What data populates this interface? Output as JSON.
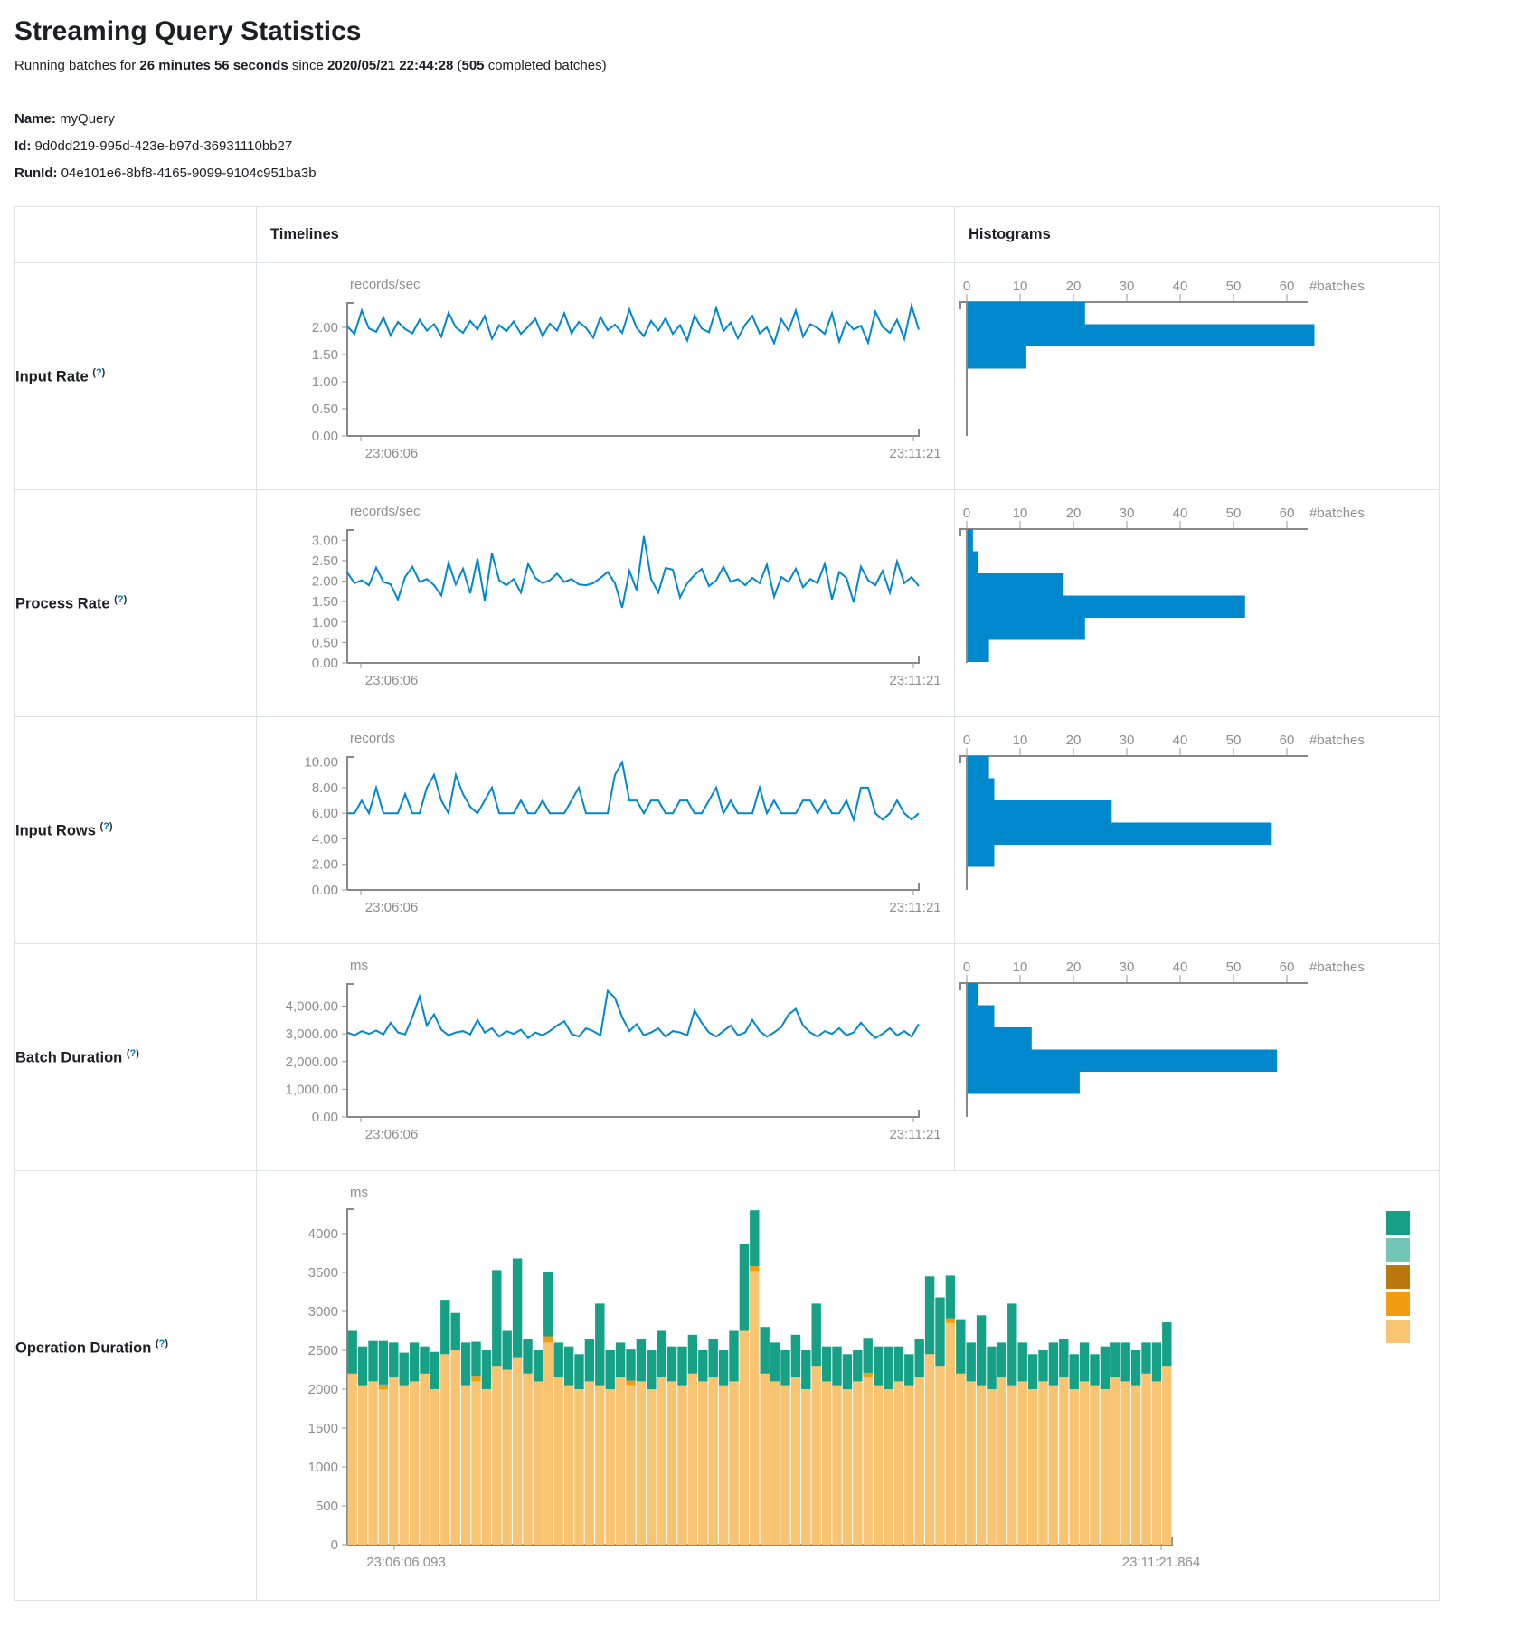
{
  "page": {
    "title": "Streaming Query Statistics",
    "summary": {
      "prefix": "Running batches for ",
      "duration": "26 minutes 56 seconds",
      "mid": " since ",
      "start_time": "2020/05/21 22:44:28",
      "open": " (",
      "batch_count": "505",
      "suffix": " completed batches)"
    },
    "name_label": "Name:",
    "name_value": "myQuery",
    "id_label": "Id:",
    "id_value": "9d0dd219-995d-423e-b97d-36931110bb27",
    "runid_label": "RunId:",
    "runid_value": "04e101e6-8bf8-4165-9099-9104c951ba3b"
  },
  "table": {
    "col_timelines": "Timelines",
    "col_histograms": "Histograms",
    "help": {
      "open": "(",
      "q": "?",
      "close": ")"
    },
    "rows": [
      {
        "label": "Input Rate"
      },
      {
        "label": "Process Rate"
      },
      {
        "label": "Input Rows"
      },
      {
        "label": "Batch Duration"
      },
      {
        "label": "Operation Duration"
      }
    ]
  },
  "colors": {
    "line_blue": "#0088CC",
    "bar_blue": "#0088CC"
  },
  "chart_data": {
    "metrics": [
      {
        "key": "input_rate",
        "type": "line",
        "title": "Input Rate",
        "unit": "records/sec",
        "x_start": "23:06:06",
        "x_end": "23:11:21",
        "y_max": 2.45,
        "y_ticks": [
          {
            "v": 0,
            "label": "0.00"
          },
          {
            "v": 0.5,
            "label": "0.50"
          },
          {
            "v": 1,
            "label": "1.00"
          },
          {
            "v": 1.5,
            "label": "1.50"
          },
          {
            "v": 2,
            "label": "2.00"
          }
        ],
        "values": [
          2.02,
          1.88,
          2.31,
          1.98,
          1.92,
          2.18,
          1.85,
          2.1,
          1.97,
          1.89,
          2.14,
          1.94,
          2.06,
          1.83,
          2.27,
          2.0,
          1.9,
          2.12,
          1.96,
          2.21,
          1.79,
          2.04,
          1.93,
          2.11,
          1.88,
          2.01,
          2.16,
          1.84,
          2.07,
          1.94,
          2.26,
          1.89,
          2.1,
          1.99,
          1.81,
          2.19,
          1.95,
          2.05,
          1.9,
          2.33,
          1.99,
          1.84,
          2.12,
          1.94,
          2.17,
          1.88,
          2.04,
          1.76,
          2.22,
          1.98,
          1.91,
          2.36,
          1.93,
          2.09,
          1.8,
          2.05,
          2.21,
          1.89,
          2.0,
          1.71,
          2.15,
          1.94,
          2.31,
          1.83,
          2.06,
          1.99,
          1.88,
          2.26,
          1.74,
          2.11,
          1.96,
          2.03,
          1.72,
          2.29,
          2.01,
          1.9,
          2.14,
          1.79,
          2.4,
          1.96
        ],
        "histogram": {
          "x_ticks": [
            0,
            10,
            20,
            30,
            40,
            50,
            60
          ],
          "unit_label": "#batches",
          "bins": [
            22,
            65,
            11
          ]
        }
      },
      {
        "key": "process_rate",
        "type": "line",
        "title": "Process Rate",
        "unit": "records/sec",
        "x_start": "23:06:06",
        "x_end": "23:11:21",
        "y_max": 3.25,
        "y_ticks": [
          {
            "v": 0,
            "label": "0.00"
          },
          {
            "v": 0.5,
            "label": "0.50"
          },
          {
            "v": 1,
            "label": "1.00"
          },
          {
            "v": 1.5,
            "label": "1.50"
          },
          {
            "v": 2,
            "label": "2.00"
          },
          {
            "v": 2.5,
            "label": "2.50"
          },
          {
            "v": 3,
            "label": "3.00"
          }
        ],
        "values": [
          2.21,
          1.95,
          2.02,
          1.9,
          2.33,
          1.98,
          1.92,
          1.55,
          2.1,
          2.35,
          1.98,
          2.05,
          1.9,
          1.65,
          2.45,
          1.92,
          2.3,
          1.7,
          2.55,
          1.52,
          2.68,
          2.02,
          1.9,
          2.05,
          1.72,
          2.42,
          2.08,
          1.95,
          2.02,
          2.18,
          1.98,
          2.05,
          1.92,
          1.9,
          1.95,
          2.08,
          2.22,
          1.95,
          1.35,
          2.25,
          1.78,
          3.1,
          2.05,
          1.72,
          2.32,
          2.28,
          1.6,
          1.95,
          2.15,
          2.3,
          1.88,
          2.02,
          2.35,
          1.98,
          2.05,
          1.9,
          2.08,
          1.95,
          2.4,
          1.62,
          2.1,
          1.98,
          2.3,
          1.85,
          2.05,
          1.95,
          2.42,
          1.55,
          2.22,
          2.08,
          1.48,
          2.35,
          2.02,
          1.9,
          2.25,
          1.72,
          2.48,
          1.95,
          2.1,
          1.88
        ],
        "histogram": {
          "x_ticks": [
            0,
            10,
            20,
            30,
            40,
            50,
            60
          ],
          "unit_label": "#batches",
          "bins": [
            1,
            2,
            18,
            52,
            22,
            4
          ]
        }
      },
      {
        "key": "input_rows",
        "type": "line",
        "title": "Input Rows",
        "unit": "records",
        "x_start": "23:06:06",
        "x_end": "23:11:21",
        "y_max": 10.4,
        "y_ticks": [
          {
            "v": 0,
            "label": "0.00"
          },
          {
            "v": 2,
            "label": "2.00"
          },
          {
            "v": 4,
            "label": "4.00"
          },
          {
            "v": 6,
            "label": "6.00"
          },
          {
            "v": 8,
            "label": "8.00"
          },
          {
            "v": 10,
            "label": "10.00"
          }
        ],
        "values": [
          6,
          6,
          7,
          6,
          8,
          6,
          6,
          6,
          7.5,
          6,
          6,
          8,
          9,
          7,
          6,
          9,
          7.5,
          6.5,
          6,
          7,
          8,
          6,
          6,
          6,
          7,
          6,
          6,
          7,
          6,
          6,
          6,
          7,
          8,
          6,
          6,
          6,
          6,
          9,
          10,
          7,
          7,
          6,
          7,
          7,
          6,
          6,
          7,
          7,
          6,
          6,
          7,
          8,
          6,
          7,
          6,
          6,
          6,
          8,
          6,
          7,
          6,
          6,
          6,
          7,
          7,
          6,
          7,
          6,
          6,
          7,
          5.5,
          8,
          8,
          6,
          5.5,
          6,
          7,
          6,
          5.5,
          6
        ],
        "histogram": {
          "x_ticks": [
            0,
            10,
            20,
            30,
            40,
            50,
            60
          ],
          "unit_label": "#batches",
          "bins": [
            4,
            5,
            27,
            57,
            5
          ]
        }
      },
      {
        "key": "batch_duration",
        "type": "line",
        "title": "Batch Duration",
        "unit": "ms",
        "x_start": "23:06:06",
        "x_end": "23:11:21",
        "y_max": 4800,
        "y_ticks": [
          {
            "v": 0,
            "label": "0.00"
          },
          {
            "v": 1000,
            "label": "1,000.00"
          },
          {
            "v": 2000,
            "label": "2,000.00"
          },
          {
            "v": 3000,
            "label": "3,000.00"
          },
          {
            "v": 4000,
            "label": "4,000.00"
          }
        ],
        "values": [
          3050,
          2950,
          3100,
          3000,
          3120,
          2980,
          3400,
          3050,
          2980,
          3600,
          4350,
          3300,
          3700,
          3150,
          2950,
          3050,
          3100,
          2980,
          3500,
          3050,
          3200,
          2900,
          3100,
          3000,
          3150,
          2850,
          3050,
          2950,
          3100,
          3300,
          3450,
          3000,
          2900,
          3200,
          3100,
          2950,
          4550,
          4300,
          3600,
          3100,
          3350,
          2950,
          3050,
          3200,
          2900,
          3100,
          3050,
          2950,
          3850,
          3400,
          3050,
          2900,
          3100,
          3300,
          2950,
          3050,
          3500,
          3100,
          2900,
          3050,
          3250,
          3700,
          3900,
          3300,
          3050,
          2900,
          3100,
          3000,
          3200,
          2950,
          3050,
          3400,
          3100,
          2850,
          3000,
          3200,
          2950,
          3100,
          2900,
          3350
        ],
        "histogram": {
          "x_ticks": [
            0,
            10,
            20,
            30,
            40,
            50,
            60
          ],
          "unit_label": "#batches",
          "bins": [
            2,
            5,
            12,
            58,
            21
          ]
        }
      },
      {
        "key": "operation_duration",
        "type": "stacked_bar",
        "title": "Operation Duration",
        "unit": "ms",
        "x_start": "23:06:06.093",
        "x_end": "23:11:21.864",
        "y_max": 4400,
        "y_ticks": [
          {
            "v": 0,
            "label": "0"
          },
          {
            "v": 500,
            "label": "500"
          },
          {
            "v": 1000,
            "label": "1000"
          },
          {
            "v": 1500,
            "label": "1500"
          },
          {
            "v": 2000,
            "label": "2000"
          },
          {
            "v": 2500,
            "label": "2500"
          },
          {
            "v": 3000,
            "label": "3000"
          },
          {
            "v": 3500,
            "label": "3500"
          },
          {
            "v": 4000,
            "label": "4000"
          }
        ],
        "series": [
          {
            "name": "segment-bottom",
            "color": "#F8C471",
            "values": [
              2200,
              2050,
              2100,
              2000,
              2150,
              2050,
              2100,
              2200,
              2000,
              2450,
              2500,
              2050,
              2100,
              2000,
              2300,
              2250,
              2400,
              2200,
              2100,
              2600,
              2150,
              2050,
              2000,
              2100,
              2050,
              2000,
              2150,
              2050,
              2100,
              2000,
              2150,
              2100,
              2050,
              2200,
              2100,
              2150,
              2050,
              2100,
              2750,
              3520,
              2200,
              2100,
              2050,
              2150,
              2000,
              2300,
              2100,
              2050,
              2000,
              2100,
              2150,
              2050,
              2000,
              2100,
              2050,
              2150,
              2450,
              2300,
              2850,
              2200,
              2100,
              2050,
              2000,
              2150,
              2050,
              2100,
              2000,
              2100,
              2050,
              2150,
              2000,
              2100,
              2050,
              2000,
              2150,
              2100,
              2050,
              2200,
              2100,
              2300
            ]
          },
          {
            "name": "segment-middle",
            "color": "#F39C12",
            "values": [
              0,
              0,
              0,
              60,
              0,
              0,
              0,
              0,
              0,
              0,
              0,
              0,
              60,
              0,
              0,
              0,
              0,
              0,
              0,
              80,
              0,
              0,
              0,
              0,
              0,
              0,
              0,
              60,
              0,
              0,
              0,
              0,
              0,
              0,
              0,
              0,
              0,
              0,
              0,
              60,
              0,
              0,
              0,
              0,
              0,
              0,
              0,
              0,
              0,
              0,
              60,
              0,
              0,
              0,
              0,
              0,
              0,
              0,
              60,
              0,
              0,
              0,
              0,
              0,
              0,
              0,
              0,
              0,
              0,
              0,
              0,
              0,
              0,
              0,
              0,
              0,
              0,
              0,
              0,
              0
            ]
          },
          {
            "name": "segment-top",
            "color": "#16A085",
            "values": [
              550,
              500,
              520,
              560,
              450,
              420,
              500,
              350,
              480,
              700,
              480,
              550,
              450,
              500,
              1230,
              500,
              1280,
              450,
              400,
              820,
              450,
              500,
              450,
              550,
              1050,
              500,
              450,
              400,
              550,
              500,
              600,
              450,
              500,
              500,
              400,
              500,
              450,
              650,
              1120,
              720,
              600,
              500,
              450,
              550,
              500,
              800,
              450,
              500,
              450,
              400,
              450,
              500,
              550,
              450,
              400,
              500,
              1000,
              880,
              550,
              700,
              500,
              900,
              550,
              450,
              1050,
              500,
              450,
              400,
              550,
              500,
              450,
              500,
              400,
              550,
              450,
              500,
              450,
              400,
              500,
              560
            ]
          }
        ],
        "legend_colors": [
          "#16A085",
          "#73C6B6",
          "#B9770E",
          "#F39C12",
          "#F8C471"
        ]
      }
    ]
  }
}
